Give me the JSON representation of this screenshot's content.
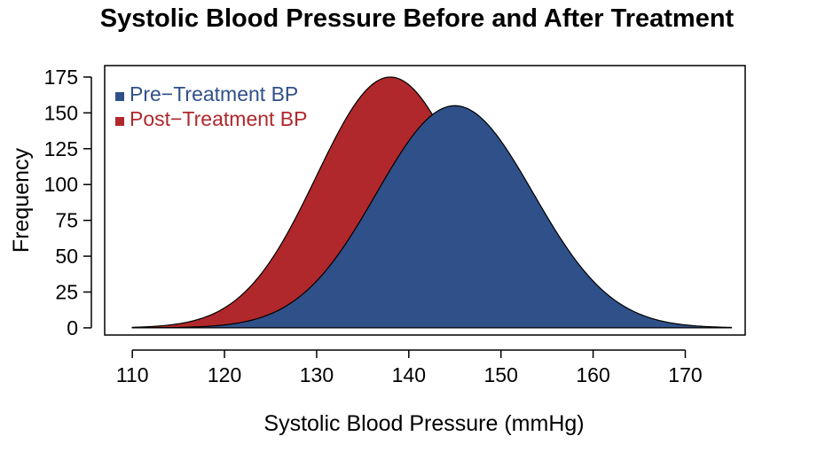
{
  "chart_data": {
    "type": "area",
    "title": "Systolic Blood Pressure Before and After Treatment",
    "xlabel": "Systolic Blood Pressure (mmHg)",
    "ylabel": "Frequency",
    "xlim": [
      107,
      176.5
    ],
    "ylim": [
      -5,
      183
    ],
    "xticks": [
      110,
      120,
      130,
      140,
      150,
      160,
      170
    ],
    "yticks": [
      0,
      25,
      50,
      75,
      100,
      125,
      150,
      175
    ],
    "grid": false,
    "legend_position": "top-left",
    "series": [
      {
        "name": "Pre−Treatment BP",
        "color": "#2f5089",
        "mean": 145,
        "sd": 8.5,
        "peak": 155,
        "x_range": [
          110,
          175
        ]
      },
      {
        "name": "Post−Treatment BP",
        "color": "#b0282b",
        "mean": 138,
        "sd": 8,
        "peak": 175,
        "x_range": [
          110,
          175
        ]
      }
    ]
  }
}
